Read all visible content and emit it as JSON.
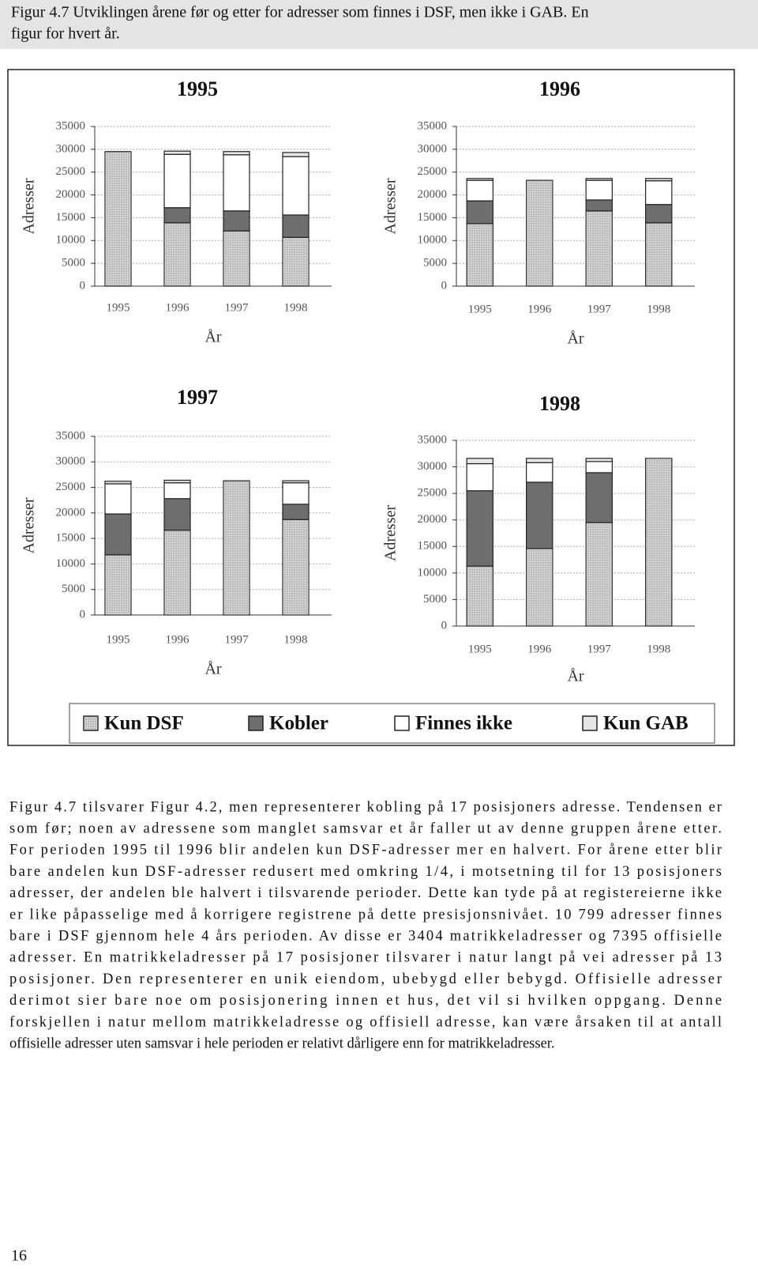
{
  "caption": [
    "Figur 4.7 Utviklingen årene før og etter for adresser som finnes i DSF, men ikke i GAB. En",
    "figur for hvert år."
  ],
  "chart_data": [
    {
      "type": "bar",
      "stacked": true,
      "title": "1995",
      "y_label": "Adresser",
      "x_label": "År",
      "grid": true,
      "categories": [
        "1995",
        "1996",
        "1997",
        "1998"
      ],
      "ylim": [
        0,
        35000
      ],
      "yticks": [
        0,
        5000,
        10000,
        15000,
        20000,
        25000,
        30000,
        35000
      ],
      "series": [
        {
          "name": "Kun DSF",
          "color": "#d4d4d4",
          "values": [
            29500,
            13900,
            12100,
            10700
          ]
        },
        {
          "name": "Kobler",
          "color": "#6e6e6e",
          "values": [
            0,
            3300,
            4400,
            4900
          ]
        },
        {
          "name": "Finnes ikke",
          "color": "#ffffff",
          "values": [
            0,
            11700,
            12300,
            12800
          ]
        },
        {
          "name": "Kun GAB",
          "color": "#e6e6e6",
          "values": [
            0,
            700,
            700,
            900
          ]
        }
      ]
    },
    {
      "type": "bar",
      "stacked": true,
      "title": "1996",
      "y_label": "Adresser",
      "x_label": "År",
      "grid": true,
      "categories": [
        "1995",
        "1996",
        "1997",
        "1998"
      ],
      "ylim": [
        0,
        35000
      ],
      "yticks": [
        0,
        5000,
        10000,
        15000,
        20000,
        25000,
        30000,
        35000
      ],
      "series": [
        {
          "color": "#d4d4d4",
          "values": [
            13700,
            23200,
            16500,
            13900
          ]
        },
        {
          "color": "#6e6e6e",
          "values": [
            5000,
            0,
            2400,
            4000
          ]
        },
        {
          "color": "#ffffff",
          "values": [
            4500,
            0,
            4300,
            5200
          ]
        },
        {
          "color": "#e6e6e6",
          "values": [
            400,
            0,
            400,
            500
          ]
        }
      ]
    },
    {
      "type": "bar",
      "stacked": true,
      "title": "1997",
      "y_label": "Adresser",
      "x_label": "År",
      "grid": true,
      "categories": [
        "1995",
        "1996",
        "1997",
        "1998"
      ],
      "ylim": [
        0,
        35000
      ],
      "yticks": [
        0,
        5000,
        10000,
        15000,
        20000,
        25000,
        30000,
        35000
      ],
      "series": [
        {
          "color": "#d4d4d4",
          "values": [
            11800,
            16600,
            26300,
            18700
          ]
        },
        {
          "color": "#6e6e6e",
          "values": [
            8000,
            6200,
            0,
            3000
          ]
        },
        {
          "color": "#ffffff",
          "values": [
            5900,
            3100,
            0,
            4200
          ]
        },
        {
          "color": "#e6e6e6",
          "values": [
            500,
            500,
            0,
            400
          ]
        }
      ]
    },
    {
      "type": "bar",
      "stacked": true,
      "title": "1998",
      "y_label": "Adresser",
      "x_label": "År",
      "grid": true,
      "categories": [
        "1995",
        "1996",
        "1997",
        "1998"
      ],
      "ylim": [
        0,
        35000
      ],
      "yticks": [
        0,
        5000,
        10000,
        15000,
        20000,
        25000,
        30000,
        35000
      ],
      "series": [
        {
          "color": "#d4d4d4",
          "values": [
            11300,
            14600,
            19500,
            31600
          ]
        },
        {
          "color": "#6e6e6e",
          "values": [
            14200,
            12500,
            9400,
            0
          ]
        },
        {
          "color": "#ffffff",
          "values": [
            5100,
            3700,
            2100,
            0
          ]
        },
        {
          "color": "#e6e6e6",
          "values": [
            1000,
            800,
            600,
            0
          ]
        }
      ]
    }
  ],
  "body": [
    "Figur 4.7 tilsvarer Figur 4.2, men representerer kobling på 17 posisjoners adresse. Tendensen er",
    "som før; noen av adressene som manglet samsvar et år faller ut av denne gruppen årene etter.",
    "For perioden 1995 til 1996 blir andelen kun DSF-adresser mer en halvert. For årene etter blir",
    "bare andelen kun DSF-adresser redusert med omkring 1/4, i motsetning til for 13 posisjoners",
    "adresser, der andelen ble halvert i tilsvarende perioder. Dette kan tyde på at registereierne ikke",
    "er like påpasselige med å korrigere registrene på dette presisjonsnivået. 10 799 adresser finnes",
    "bare i DSF gjennom hele 4 års perioden. Av disse er 3404 matrikkeladresser og 7395 offisielle",
    "adresser. En matrikkeladresser på 17 posisjoner tilsvarer i natur langt på vei adresser på 13",
    "posisjoner. Den representerer en unik eiendom, ubebygd eller bebygd. Offisielle adresser",
    "derimot sier bare noe om posisjonering innen et hus, det vil si hvilken oppgang. Denne",
    "forskjellen i natur mellom matrikkeladresse og offisiell adresse, kan være årsaken til at antall",
    "offisielle adresser uten samsvar i hele perioden er relativt dårligere enn for matrikkeladresser."
  ],
  "page_number": "16"
}
